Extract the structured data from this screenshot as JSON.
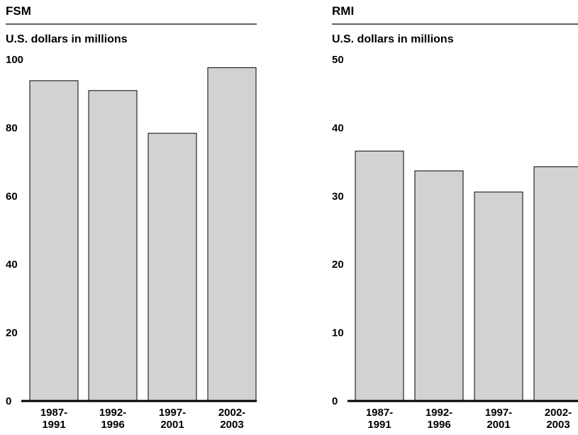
{
  "chart_data": [
    {
      "type": "bar",
      "title": "FSM",
      "ylabel": "U.S. dollars in millions",
      "ylim": [
        0,
        100
      ],
      "yticks": [
        "0",
        "20",
        "40",
        "60",
        "80",
        "100"
      ],
      "categories": [
        [
          "1987-",
          "1991"
        ],
        [
          "1992-",
          "1996"
        ],
        [
          "1997-",
          "2001"
        ],
        [
          "2002-",
          "2003"
        ]
      ],
      "values": [
        93.8,
        90.9,
        78.4,
        97.6
      ],
      "bar_color": "#d1d2d4",
      "grid": false
    },
    {
      "type": "bar",
      "title": "RMI",
      "ylabel": "U.S. dollars in millions",
      "ylim": [
        0,
        50
      ],
      "yticks": [
        "0",
        "10",
        "20",
        "30",
        "40",
        "50"
      ],
      "categories": [
        [
          "1987-",
          "1991"
        ],
        [
          "1992-",
          "1996"
        ],
        [
          "1997-",
          "2001"
        ],
        [
          "2002-",
          "2003"
        ]
      ],
      "values": [
        36.6,
        33.7,
        30.6,
        34.3
      ],
      "bar_color": "#d1d2d4",
      "grid": false
    }
  ]
}
